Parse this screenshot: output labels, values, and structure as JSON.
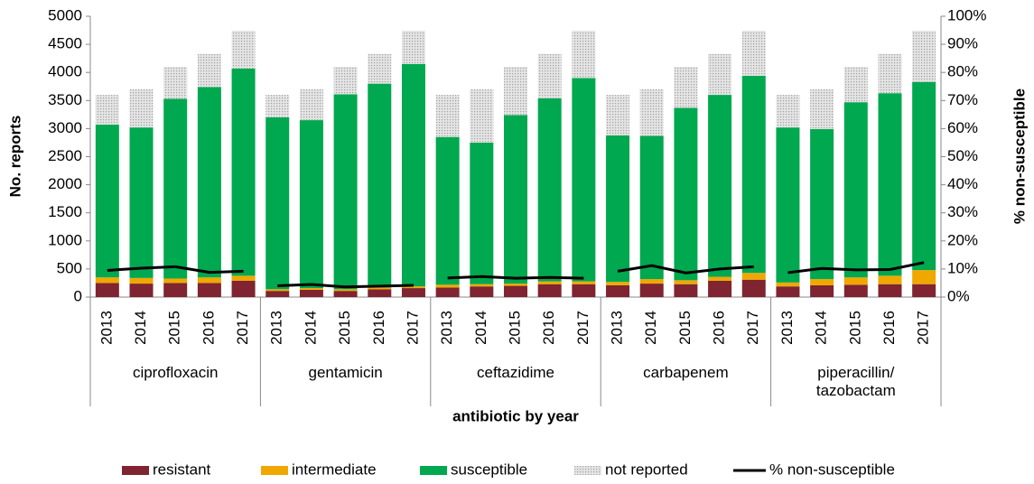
{
  "chart_data": {
    "type": "stacked-bar-line",
    "xlabel": "antibiotic by year",
    "ylabel": "No. reports",
    "y2label": "% non-susceptible",
    "groups": [
      {
        "label": "ciprofloxacin",
        "categories": [
          "2013",
          "2014",
          "2015",
          "2016",
          "2017"
        ]
      },
      {
        "label": "gentamicin",
        "categories": [
          "2013",
          "2014",
          "2015",
          "2016",
          "2017"
        ]
      },
      {
        "label": "ceftazidime",
        "categories": [
          "2013",
          "2014",
          "2015",
          "2016",
          "2017"
        ]
      },
      {
        "label": "carbapenem",
        "categories": [
          "2013",
          "2014",
          "2015",
          "2016",
          "2017"
        ]
      },
      {
        "label": "piperacillin/\ntazobactam",
        "categories": [
          "2013",
          "2014",
          "2015",
          "2016",
          "2017"
        ]
      }
    ],
    "series": [
      {
        "name": "resistant",
        "color": "#7f2430",
        "values": [
          250,
          240,
          250,
          250,
          290,
          110,
          130,
          110,
          140,
          160,
          170,
          190,
          200,
          230,
          230,
          210,
          240,
          230,
          290,
          310,
          190,
          210,
          220,
          230,
          230
        ]
      },
      {
        "name": "intermediate",
        "color": "#f0a800",
        "values": [
          100,
          100,
          80,
          100,
          90,
          30,
          30,
          30,
          30,
          30,
          50,
          40,
          40,
          50,
          50,
          60,
          80,
          70,
          70,
          120,
          70,
          110,
          130,
          150,
          250
        ]
      },
      {
        "name": "susceptible",
        "color": "#00a84f",
        "values": [
          2720,
          2680,
          3200,
          3390,
          3690,
          3060,
          2990,
          3470,
          3630,
          3960,
          2630,
          2520,
          3000,
          3260,
          3620,
          2610,
          2550,
          3070,
          3240,
          3510,
          2760,
          2670,
          3120,
          3250,
          3350
        ]
      },
      {
        "name": "not reported",
        "color": "#c8c8c8",
        "pattern": "dotted",
        "values": [
          530,
          680,
          570,
          590,
          670,
          400,
          550,
          490,
          530,
          590,
          750,
          950,
          860,
          790,
          840,
          720,
          830,
          730,
          730,
          800,
          580,
          710,
          630,
          700,
          910
        ]
      },
      {
        "name": "% non-susceptible",
        "color": "#000000",
        "axis": "y2",
        "line": true,
        "values": [
          9.5,
          10.3,
          10.8,
          8.8,
          9.2,
          4.0,
          4.5,
          3.6,
          3.9,
          4.2,
          6.8,
          7.3,
          6.7,
          7.0,
          6.7,
          9.2,
          11.2,
          8.6,
          10.0,
          10.8,
          8.7,
          10.2,
          9.7,
          9.8,
          12.3
        ]
      }
    ],
    "ylim": [
      0,
      5000
    ],
    "yticks": [
      0,
      500,
      1000,
      1500,
      2000,
      2500,
      3000,
      3500,
      4000,
      4500,
      5000
    ],
    "y2lim": [
      0,
      100
    ],
    "y2ticks": [
      {
        "value": 0,
        "label": "0%"
      },
      {
        "value": 10,
        "label": "10%"
      },
      {
        "value": 20,
        "label": "20%"
      },
      {
        "value": 30,
        "label": "30%"
      },
      {
        "value": 40,
        "label": "40%"
      },
      {
        "value": 50,
        "label": "50%"
      },
      {
        "value": 60,
        "label": "60%"
      },
      {
        "value": 70,
        "label": "70%"
      },
      {
        "value": 80,
        "label": "80%"
      },
      {
        "value": 90,
        "label": "90%"
      },
      {
        "value": 100,
        "label": "100%"
      }
    ],
    "legend": "bottom"
  }
}
